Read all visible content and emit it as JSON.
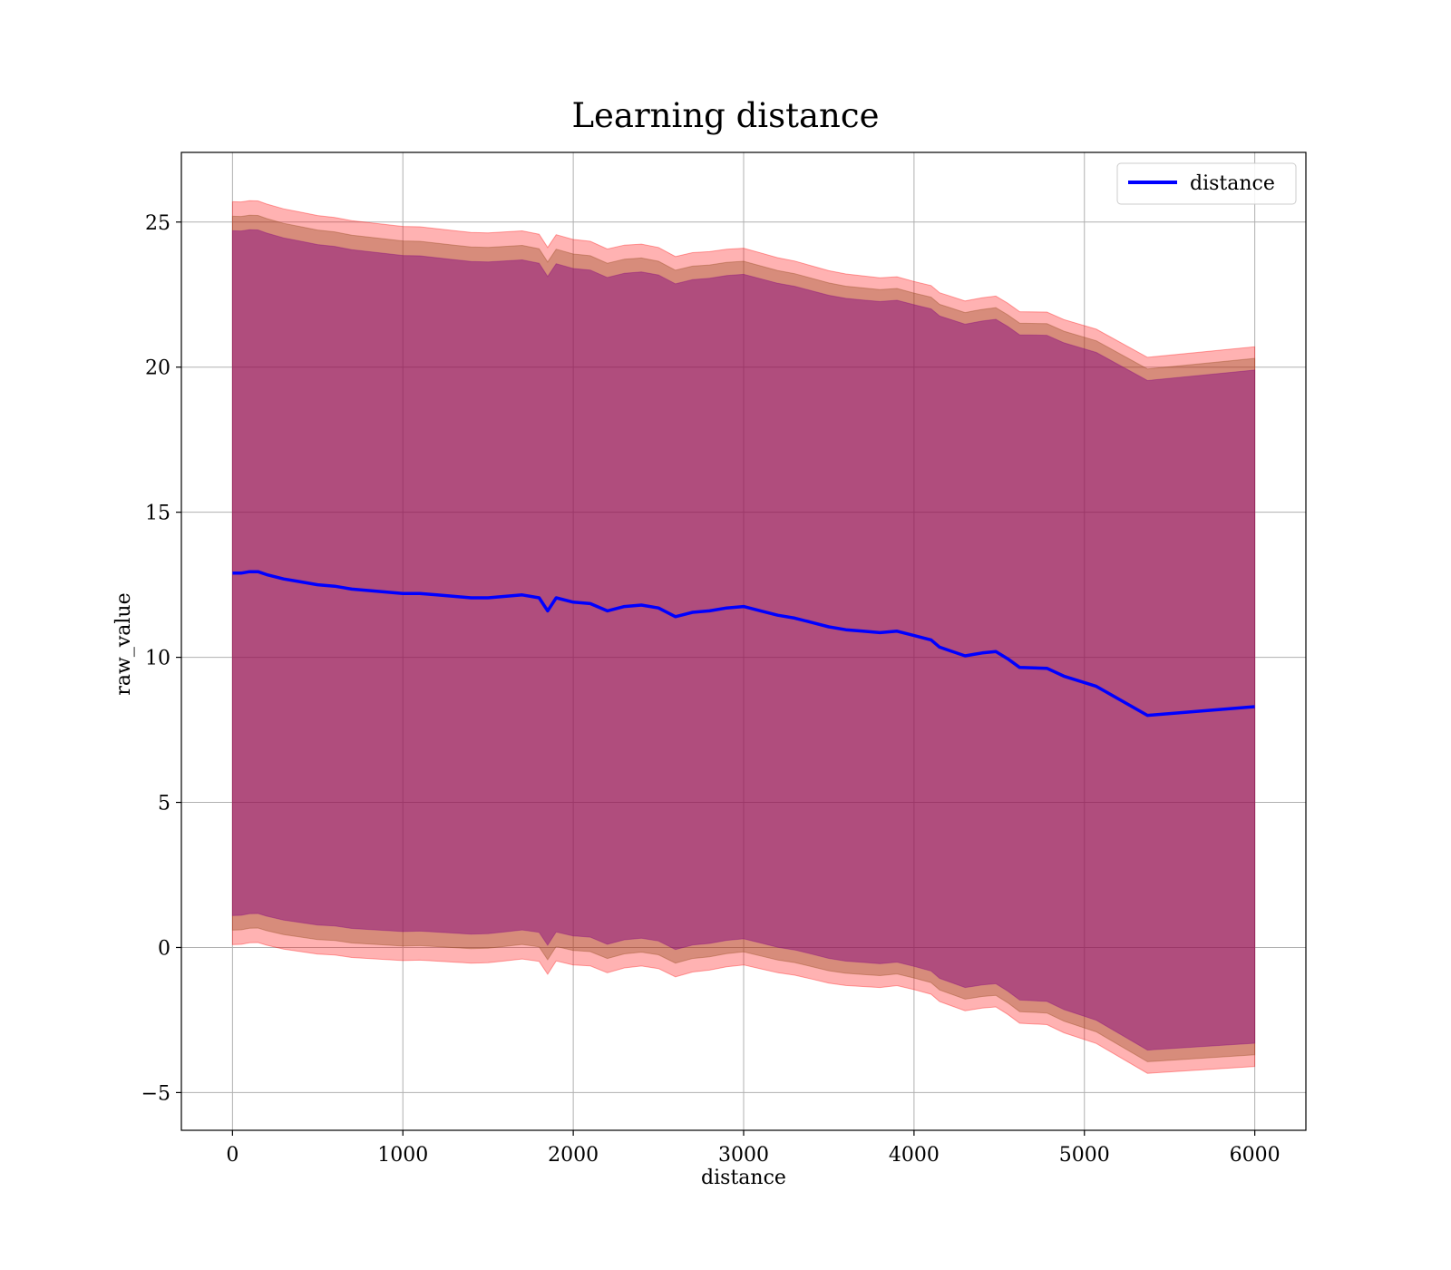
{
  "chart_data": {
    "type": "area",
    "title": "Learning distance",
    "xlabel": "distance",
    "ylabel": "raw_value",
    "xlim": [
      -300,
      6300
    ],
    "ylim": [
      -6.3,
      27.4
    ],
    "xticks": [
      0,
      1000,
      2000,
      3000,
      4000,
      5000,
      6000
    ],
    "yticks": [
      -5,
      0,
      5,
      10,
      15,
      20,
      25
    ],
    "ytick_labels": [
      "−5",
      "0",
      "5",
      "10",
      "15",
      "20",
      "25"
    ],
    "grid": true,
    "legend": {
      "position": "top-right",
      "entries": [
        "distance"
      ]
    },
    "colors": {
      "line": "#0000ff",
      "band_outer": "#ff0000",
      "band_middle": "#8b4513",
      "band_inner": "#800080"
    },
    "x": [
      0,
      50,
      100,
      150,
      200,
      300,
      400,
      500,
      600,
      700,
      800,
      900,
      1000,
      1100,
      1200,
      1300,
      1400,
      1500,
      1600,
      1700,
      1800,
      1850,
      1900,
      2000,
      2100,
      2200,
      2300,
      2400,
      2500,
      2600,
      2700,
      2800,
      2900,
      3000,
      3100,
      3200,
      3300,
      3400,
      3500,
      3600,
      3700,
      3800,
      3900,
      4000,
      4100,
      4150,
      4200,
      4300,
      4350,
      4400,
      4480,
      4550,
      4620,
      4780,
      4880,
      5070,
      5370,
      6000
    ],
    "series": [
      {
        "name": "distance",
        "values": [
          12.9,
          12.9,
          12.95,
          12.95,
          12.85,
          12.7,
          12.6,
          12.5,
          12.45,
          12.35,
          12.3,
          12.25,
          12.2,
          12.2,
          12.15,
          12.1,
          12.05,
          12.05,
          12.1,
          12.15,
          12.05,
          11.6,
          12.05,
          11.9,
          11.85,
          11.6,
          11.75,
          11.8,
          11.7,
          11.4,
          11.55,
          11.6,
          11.7,
          11.75,
          11.6,
          11.45,
          11.35,
          11.2,
          11.05,
          10.95,
          10.9,
          10.85,
          10.9,
          10.75,
          10.6,
          10.35,
          10.25,
          10.05,
          10.1,
          10.15,
          10.2,
          9.95,
          9.65,
          9.62,
          9.35,
          9.0,
          8.0,
          8.3
        ]
      }
    ],
    "bands": [
      {
        "role": "outer",
        "offsets": [
          12.8,
          12.5,
          12.2,
          12.4
        ]
      },
      {
        "role": "middle",
        "offsets": [
          12.3,
          12.0,
          11.8,
          12.0
        ]
      },
      {
        "role": "inner",
        "offsets": [
          11.8,
          11.5,
          11.4,
          11.6
        ]
      }
    ]
  }
}
